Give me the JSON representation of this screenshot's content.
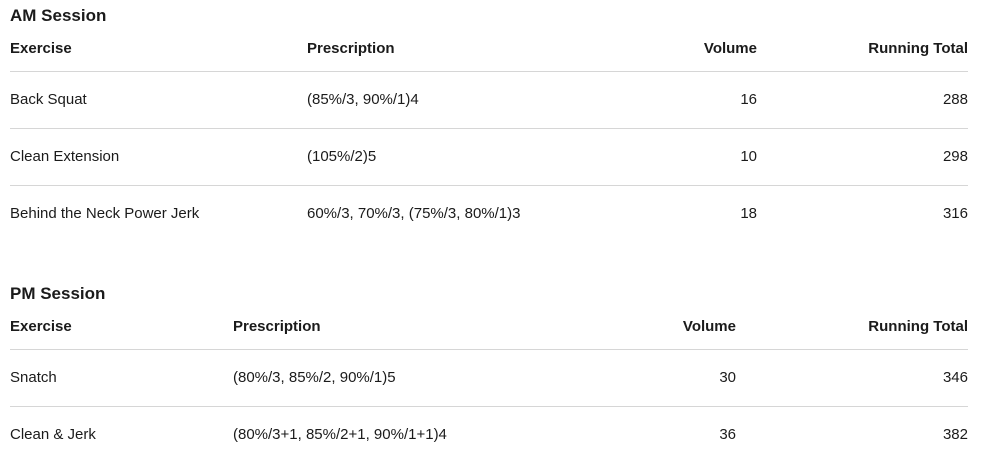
{
  "colors": {
    "background": "#ffffff",
    "text": "#1b1b1b",
    "divider": "#d6d6d6"
  },
  "sessions": [
    {
      "title": "AM Session",
      "columns": {
        "exercise": "Exercise",
        "prescription": "Prescription",
        "volume": "Volume",
        "running_total": "Running Total"
      },
      "rows": [
        {
          "exercise": "Back Squat",
          "prescription": "(85%/3, 90%/1)4",
          "volume": "16",
          "running_total": "288"
        },
        {
          "exercise": "Clean Extension",
          "prescription": "(105%/2)5",
          "volume": "10",
          "running_total": "298"
        },
        {
          "exercise": "Behind the Neck Power Jerk",
          "prescription": "60%/3, 70%/3, (75%/3, 80%/1)3",
          "volume": "18",
          "running_total": "316"
        }
      ]
    },
    {
      "title": "PM Session",
      "columns": {
        "exercise": "Exercise",
        "prescription": "Prescription",
        "volume": "Volume",
        "running_total": "Running Total"
      },
      "rows": [
        {
          "exercise": "Snatch",
          "prescription": "(80%/3, 85%/2, 90%/1)5",
          "volume": "30",
          "running_total": "346"
        },
        {
          "exercise": "Clean & Jerk",
          "prescription": "(80%/3+1, 85%/2+1, 90%/1+1)4",
          "volume": "36",
          "running_total": "382"
        }
      ]
    }
  ]
}
